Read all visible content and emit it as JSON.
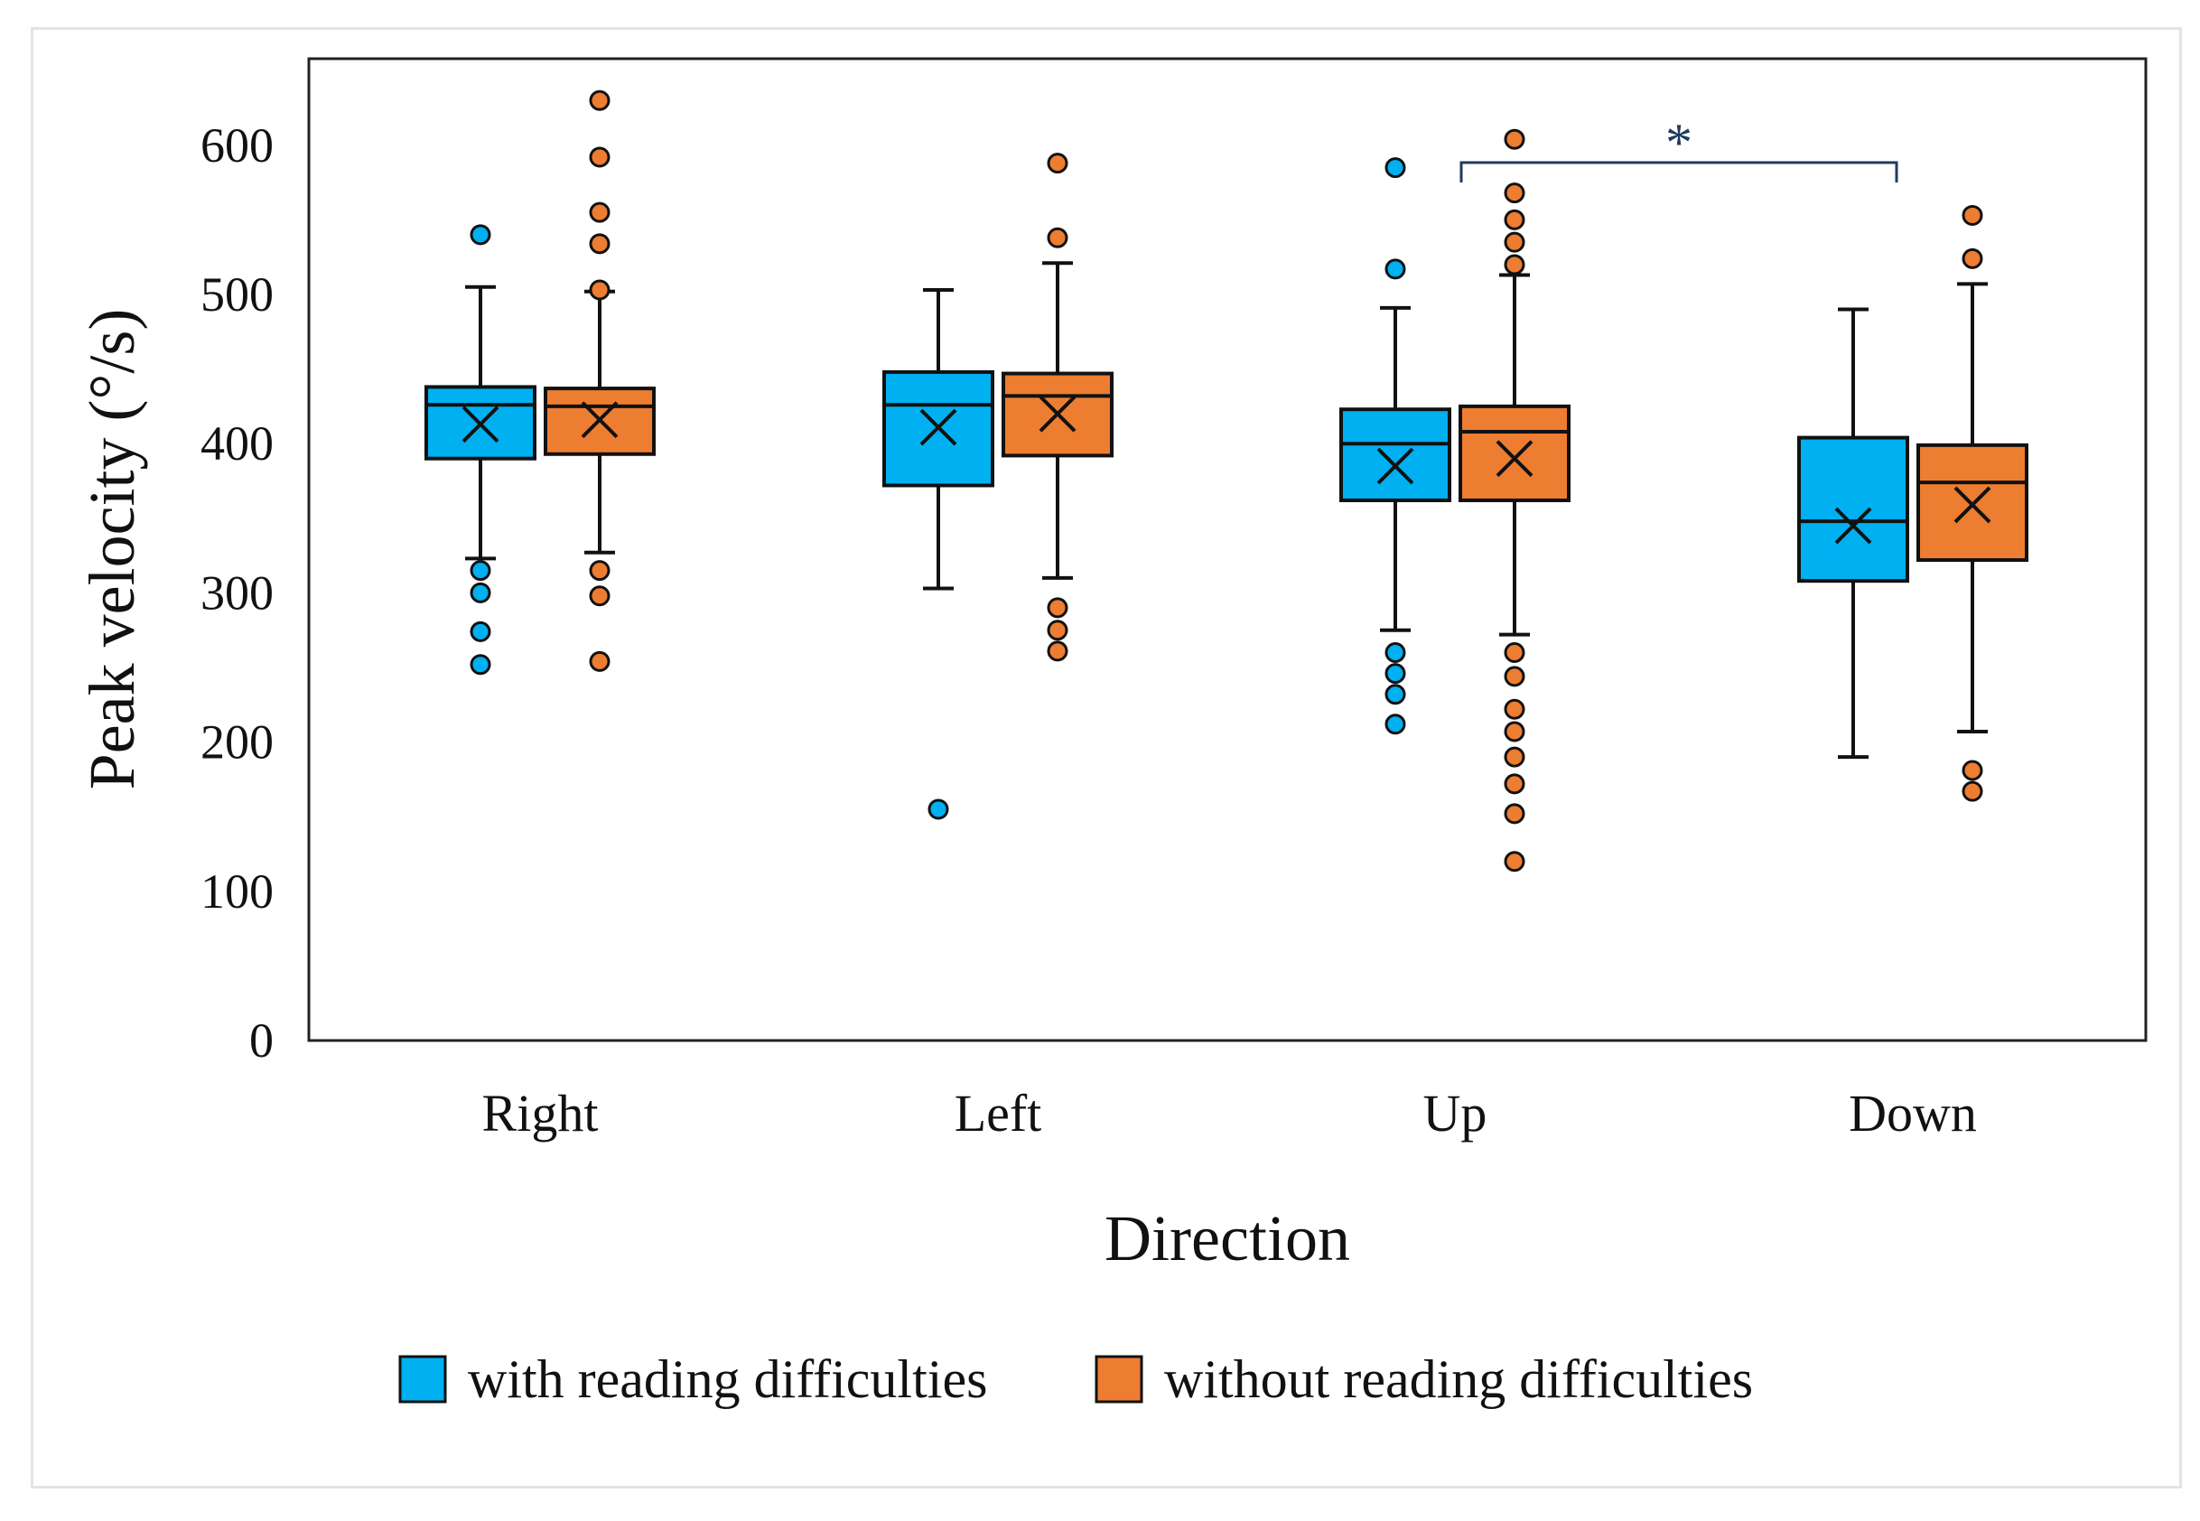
{
  "chart_data": {
    "type": "box",
    "title": "",
    "xlabel": "Direction",
    "ylabel": "Peak velocity (°/s)",
    "ylim": [
      0,
      650
    ],
    "yticks": [
      0,
      100,
      200,
      300,
      400,
      500,
      600
    ],
    "ytick_labels": [
      "0",
      "100",
      "200",
      "300",
      "400",
      "500",
      "600"
    ],
    "categories": [
      "Right",
      "Left",
      "Up",
      "Down"
    ],
    "legend_position": "bottom",
    "series": [
      {
        "name": "with reading difficulties",
        "color": "#00b0f0",
        "boxes": [
          {
            "whisker_low": 323,
            "q1": 390,
            "median": 426,
            "q3": 438,
            "whisker_high": 505,
            "mean": 413,
            "outliers": [
              540,
              315,
              300,
              274,
              252
            ]
          },
          {
            "whisker_low": 303,
            "q1": 372,
            "median": 426,
            "q3": 448,
            "whisker_high": 503,
            "mean": 411,
            "outliers": [
              155
            ]
          },
          {
            "whisker_low": 275,
            "q1": 362,
            "median": 400,
            "q3": 423,
            "whisker_high": 491,
            "mean": 385,
            "outliers": [
              585,
              517,
              260,
              246,
              232,
              212
            ]
          },
          {
            "whisker_low": 190,
            "q1": 308,
            "median": 348,
            "q3": 404,
            "whisker_high": 490,
            "mean": 345,
            "outliers": []
          }
        ]
      },
      {
        "name": "without reading difficulties",
        "color": "#ed7d31",
        "boxes": [
          {
            "whisker_low": 327,
            "q1": 393,
            "median": 425,
            "q3": 437,
            "whisker_high": 502,
            "mean": 416,
            "outliers": [
              630,
              592,
              555,
              534,
              503,
              315,
              298,
              254
            ]
          },
          {
            "whisker_low": 310,
            "q1": 392,
            "median": 432,
            "q3": 447,
            "whisker_high": 521,
            "mean": 420,
            "outliers": [
              588,
              538,
              290,
              275,
              261
            ]
          },
          {
            "whisker_low": 272,
            "q1": 362,
            "median": 408,
            "q3": 425,
            "whisker_high": 513,
            "mean": 390,
            "outliers": [
              604,
              568,
              550,
              535,
              520,
              260,
              244,
              222,
              207,
              190,
              172,
              152,
              120
            ]
          },
          {
            "whisker_low": 207,
            "q1": 322,
            "median": 374,
            "q3": 399,
            "whisker_high": 507,
            "mean": 359,
            "outliers": [
              553,
              524,
              181,
              167
            ]
          }
        ]
      }
    ],
    "annotations": [
      {
        "text": "*",
        "type": "significance",
        "between": [
          "Up",
          "Down"
        ]
      }
    ]
  }
}
